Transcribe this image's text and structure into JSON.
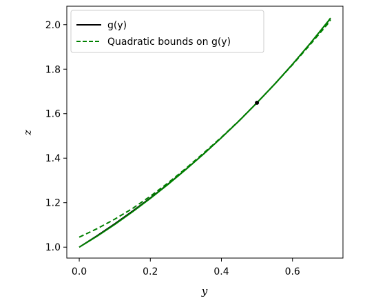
{
  "chart_data": {
    "type": "line",
    "title": "",
    "xlabel": "y",
    "ylabel": "z",
    "xlim": [
      -0.035,
      0.742
    ],
    "ylim": [
      0.951,
      2.083
    ],
    "xticks": [
      0.0,
      0.2,
      0.4,
      0.6
    ],
    "xtick_labels": [
      "0.0",
      "0.2",
      "0.4",
      "0.6"
    ],
    "yticks": [
      1.0,
      1.2,
      1.4,
      1.6,
      1.8,
      2.0
    ],
    "ytick_labels": [
      "1.0",
      "1.2",
      "1.4",
      "1.6",
      "1.8",
      "2.0"
    ],
    "grid": false,
    "legend": {
      "placement": "upper-left",
      "entries": [
        "g(y)",
        "Quadratic bounds on g(y)"
      ]
    },
    "series": [
      {
        "name": "g(y)",
        "color": "#000000",
        "style": "solid",
        "x": [
          0.0,
          0.05,
          0.1,
          0.15,
          0.2,
          0.25,
          0.3,
          0.35,
          0.4,
          0.45,
          0.5,
          0.55,
          0.6,
          0.65,
          0.7,
          0.707
        ],
        "y": [
          1.0,
          1.051,
          1.105,
          1.162,
          1.221,
          1.284,
          1.35,
          1.419,
          1.492,
          1.568,
          1.649,
          1.733,
          1.822,
          1.916,
          2.014,
          2.028
        ]
      },
      {
        "name": "Quadratic bounds on g(y)",
        "color": "#008000",
        "style": "dashed",
        "x": [
          0.0,
          0.05,
          0.1,
          0.15,
          0.2,
          0.25,
          0.3,
          0.35,
          0.4,
          0.45,
          0.5,
          0.55,
          0.6,
          0.65,
          0.7,
          0.707
        ],
        "y": [
          1.045,
          1.083,
          1.126,
          1.174,
          1.229,
          1.289,
          1.354,
          1.423,
          1.494,
          1.569,
          1.649,
          1.733,
          1.82,
          1.911,
          2.005,
          2.022
        ]
      },
      {
        "name": "",
        "color": "#008000",
        "style": "solid",
        "x": [
          0.0,
          0.05,
          0.1,
          0.15,
          0.2,
          0.25,
          0.3,
          0.35,
          0.4,
          0.45,
          0.5,
          0.55,
          0.6,
          0.65,
          0.7,
          0.707
        ],
        "y": [
          1.0,
          1.049,
          1.102,
          1.159,
          1.219,
          1.282,
          1.349,
          1.419,
          1.492,
          1.568,
          1.649,
          1.733,
          1.822,
          1.916,
          2.015,
          2.03
        ]
      }
    ],
    "points": [
      {
        "x": 0.5,
        "y": 1.649,
        "color": "#000000"
      }
    ]
  }
}
